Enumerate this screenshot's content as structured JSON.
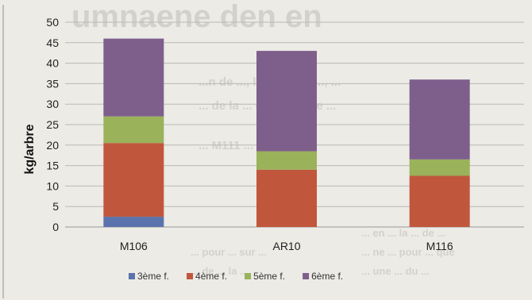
{
  "background_text": {
    "heading": "umnaene den en",
    "line_1": "...n de ..., la ... sur le ..., ...",
    "line_2": "... de la ... de la ... et le ...",
    "line_3": "... M111 ... de ...",
    "body_right_1": "... en ... la ... de ...",
    "body_right_2": "... ne ... pour ... que",
    "body_right_3": "... une ... du ...",
    "body_left_1": "... pour ... sur ...",
    "body_left_2": "... de ... la ..."
  },
  "chart_data": {
    "type": "bar",
    "stacked": true,
    "categories": [
      "M106",
      "AR10",
      "M116"
    ],
    "series": [
      {
        "name": "3ème f.",
        "color": "#5b73ad",
        "values": [
          2.5,
          0,
          0
        ]
      },
      {
        "name": "4ème f.",
        "color": "#c0573d",
        "values": [
          18,
          14,
          12.5
        ]
      },
      {
        "name": "5ème f.",
        "color": "#9ab25a",
        "values": [
          6.5,
          4.5,
          4
        ]
      },
      {
        "name": "6ème f.",
        "color": "#7e5f8c",
        "values": [
          19,
          24.5,
          19.5
        ]
      }
    ],
    "title": "",
    "xlabel": "",
    "ylabel": "kg/arbre",
    "ylim": [
      0,
      50
    ],
    "yticks": [
      0,
      5,
      10,
      15,
      20,
      25,
      30,
      35,
      40,
      45,
      50
    ],
    "grid": true,
    "legend_position": "bottom"
  }
}
